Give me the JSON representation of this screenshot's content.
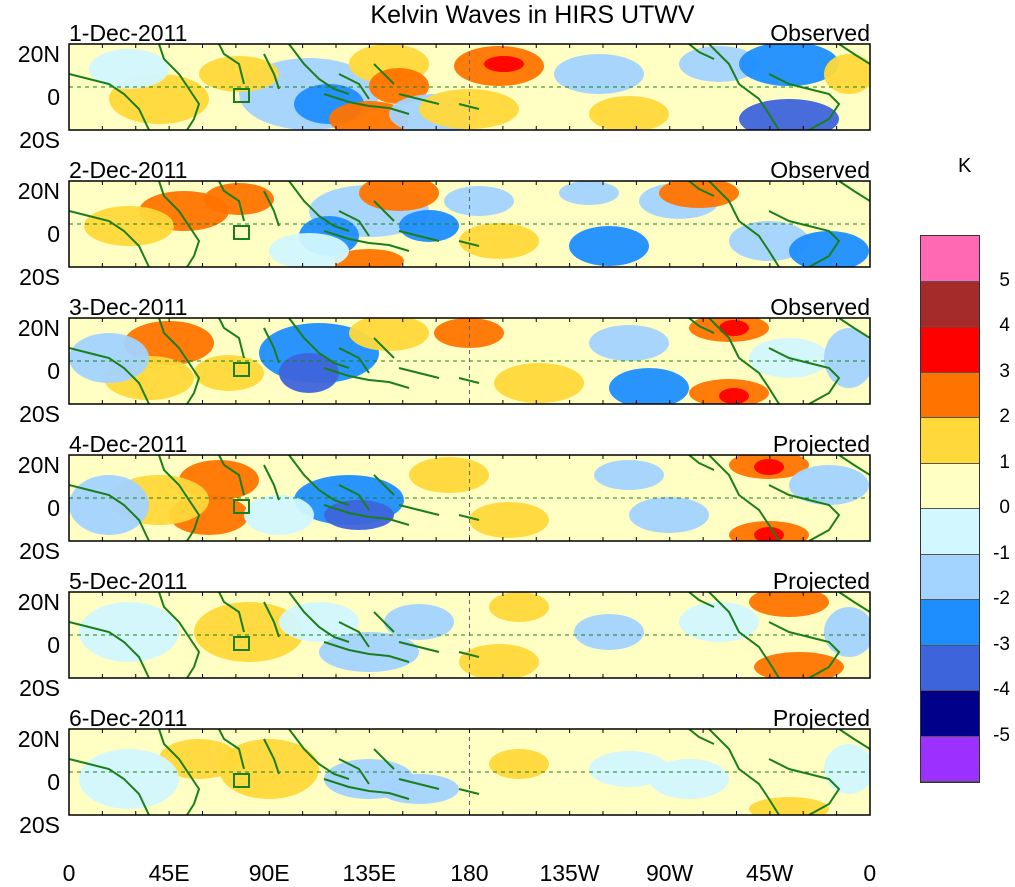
{
  "title": "Kelvin Waves in HIRS UTWV",
  "x_axis": {
    "ticks": [
      "0",
      "45E",
      "90E",
      "135E",
      "180",
      "135W",
      "90W",
      "45W",
      "0"
    ]
  },
  "y_axis": {
    "ticks": [
      "20N",
      "0",
      "20S"
    ]
  },
  "panels": [
    {
      "date": "1-Dec-2011",
      "mode": "Observed"
    },
    {
      "date": "2-Dec-2011",
      "mode": "Observed"
    },
    {
      "date": "3-Dec-2011",
      "mode": "Observed"
    },
    {
      "date": "4-Dec-2011",
      "mode": "Projected"
    },
    {
      "date": "5-Dec-2011",
      "mode": "Projected"
    },
    {
      "date": "6-Dec-2011",
      "mode": "Projected"
    }
  ],
  "colorbar": {
    "unit": "K",
    "labels": [
      "5",
      "4",
      "3",
      "2",
      "1",
      "0",
      "-1",
      "-2",
      "-3",
      "-4",
      "-5"
    ],
    "colors": [
      "#ff69b4",
      "#a52a2a",
      "#ff0000",
      "#ff7400",
      "#ffd83a",
      "#ffffc4",
      "#d2f7ff",
      "#a3d3ff",
      "#1e8eff",
      "#3e64db",
      "#00008b",
      "#9b30ff"
    ]
  },
  "map_colors": {
    "background": "#ffffc4",
    "coast": "#1a7f1a",
    "border": "#1a7f1a"
  }
}
